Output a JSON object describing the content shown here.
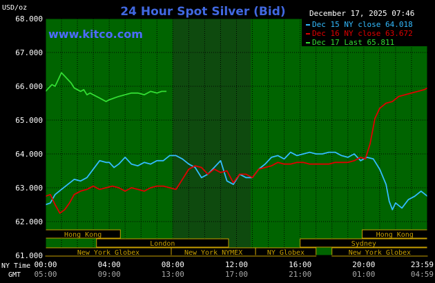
{
  "chart_data": {
    "type": "line",
    "title": "24 Hour Spot Silver (Bid)",
    "site": "www.kitco.com",
    "date_stamp": "December 17, 2025 07:46",
    "unit_label": "USD/oz",
    "ylim": [
      61.0,
      68.0
    ],
    "y_ticks": [
      "68.000",
      "67.000",
      "66.000",
      "65.000",
      "64.000",
      "63.000",
      "62.000",
      "61.000"
    ],
    "xlim": [
      0,
      24
    ],
    "x_ticks_ny": [
      "00:00",
      "04:00",
      "08:00",
      "12:00",
      "16:00",
      "20:00",
      "23:59"
    ],
    "x_ticks_gmt": [
      "05:00",
      "09:00",
      "13:00",
      "17:00",
      "21:00",
      "01:00",
      "04:59"
    ],
    "ny_time_label": "NY Time",
    "gmt_label": "GMT",
    "grid": true,
    "legend_position": "top-right",
    "shaded_session": [
      8.0,
      12.9
    ],
    "colors": {
      "background": "#000000",
      "plot": "#006400",
      "grid": "#000000",
      "title": "#4169E1",
      "site": "#4D6BFF",
      "band_fill": "#000000",
      "band_border": "#C8A000",
      "axis_text": "#FFFFFF"
    },
    "sessions": [
      {
        "label": "Hong Kong",
        "start": 0.0,
        "end": 4.7,
        "row": 0
      },
      {
        "label": "Hong Kong",
        "start": 19.9,
        "end": 24.0,
        "row": 0
      },
      {
        "label": "London",
        "start": 3.2,
        "end": 11.5,
        "row": 1
      },
      {
        "label": "Sydney",
        "start": 16.0,
        "end": 24.0,
        "row": 1
      },
      {
        "label": "New York Globex",
        "start": 0.0,
        "end": 7.9,
        "row": 2
      },
      {
        "label": "New York NYMEX",
        "start": 7.9,
        "end": 13.2,
        "row": 2
      },
      {
        "label": "NY Globex",
        "start": 13.2,
        "end": 17.0,
        "row": 2
      },
      {
        "label": "New York Globex",
        "start": 18.0,
        "end": 24.0,
        "row": 2
      }
    ],
    "series": [
      {
        "name": "Dec 15 NY close 64.018",
        "color": "#33BBFF",
        "x": [
          0,
          0.3,
          0.6,
          1.0,
          1.4,
          1.8,
          2.2,
          2.6,
          3.0,
          3.4,
          3.8,
          4.0,
          4.3,
          4.6,
          5.0,
          5.4,
          5.8,
          6.2,
          6.6,
          7.0,
          7.4,
          7.8,
          8.2,
          8.6,
          9.0,
          9.4,
          9.8,
          10.2,
          10.6,
          11.0,
          11.4,
          11.8,
          12.2,
          12.6,
          13.0,
          13.4,
          13.8,
          14.2,
          14.6,
          15.0,
          15.4,
          15.8,
          16.2,
          16.6,
          17.0,
          17.4,
          17.8,
          18.2,
          18.6,
          19.0,
          19.4,
          19.8,
          20.2,
          20.6,
          21.0,
          21.4,
          21.6,
          21.8,
          22.0,
          22.4,
          22.8,
          23.2,
          23.6,
          24.0
        ],
        "y": [
          62.5,
          62.55,
          62.8,
          62.95,
          63.1,
          63.25,
          63.2,
          63.3,
          63.55,
          63.8,
          63.75,
          63.75,
          63.6,
          63.7,
          63.9,
          63.7,
          63.65,
          63.75,
          63.7,
          63.8,
          63.8,
          63.95,
          63.95,
          63.85,
          63.7,
          63.6,
          63.3,
          63.4,
          63.6,
          63.8,
          63.2,
          63.1,
          63.4,
          63.3,
          63.3,
          63.55,
          63.7,
          63.9,
          63.95,
          63.85,
          64.05,
          63.95,
          64.0,
          64.05,
          64.0,
          64.0,
          64.05,
          64.05,
          63.95,
          63.9,
          64.0,
          63.8,
          63.9,
          63.85,
          63.55,
          63.1,
          62.6,
          62.35,
          62.55,
          62.4,
          62.65,
          62.75,
          62.9,
          62.75
        ]
      },
      {
        "name": "Dec 16 NY close 63.672",
        "color": "#E00000",
        "x": [
          0,
          0.3,
          0.6,
          0.9,
          1.2,
          1.5,
          1.8,
          2.2,
          2.6,
          3.0,
          3.4,
          3.8,
          4.2,
          4.6,
          5.0,
          5.4,
          5.8,
          6.2,
          6.6,
          7.0,
          7.4,
          7.8,
          8.2,
          8.6,
          9.0,
          9.4,
          9.8,
          10.2,
          10.6,
          11.0,
          11.4,
          11.8,
          12.2,
          12.6,
          13.0,
          13.4,
          13.8,
          14.2,
          14.6,
          15.0,
          15.4,
          15.8,
          16.2,
          16.6,
          17.0,
          17.4,
          17.8,
          18.2,
          18.6,
          19.0,
          19.4,
          19.8,
          20.1,
          20.4,
          20.7,
          21.0,
          21.4,
          21.8,
          22.2,
          22.6,
          23.0,
          23.4,
          23.8,
          24.0
        ],
        "y": [
          62.75,
          62.8,
          62.5,
          62.25,
          62.35,
          62.55,
          62.8,
          62.9,
          62.95,
          63.05,
          62.95,
          63.0,
          63.05,
          63.0,
          62.9,
          63.0,
          62.95,
          62.9,
          63.0,
          63.05,
          63.05,
          63.0,
          62.95,
          63.25,
          63.55,
          63.65,
          63.6,
          63.4,
          63.55,
          63.45,
          63.5,
          63.15,
          63.4,
          63.4,
          63.3,
          63.55,
          63.6,
          63.65,
          63.75,
          63.7,
          63.7,
          63.75,
          63.75,
          63.7,
          63.7,
          63.7,
          63.7,
          63.75,
          63.75,
          63.75,
          63.8,
          63.9,
          63.85,
          64.3,
          65.05,
          65.35,
          65.5,
          65.55,
          65.7,
          65.75,
          65.8,
          65.85,
          65.9,
          65.95
        ]
      },
      {
        "name": "Dec 17 Last 65.811",
        "color": "#33DD33",
        "x": [
          0,
          0.2,
          0.4,
          0.6,
          0.8,
          1.0,
          1.2,
          1.4,
          1.6,
          1.8,
          2.0,
          2.2,
          2.4,
          2.6,
          2.8,
          3.0,
          3.2,
          3.4,
          3.6,
          3.8,
          4.0,
          4.3,
          4.6,
          5.0,
          5.4,
          5.8,
          6.2,
          6.6,
          7.0,
          7.3,
          7.6
        ],
        "y": [
          65.85,
          65.95,
          66.05,
          66.0,
          66.2,
          66.4,
          66.3,
          66.2,
          66.1,
          65.95,
          65.9,
          65.85,
          65.9,
          65.75,
          65.8,
          65.75,
          65.7,
          65.65,
          65.6,
          65.55,
          65.6,
          65.65,
          65.7,
          65.75,
          65.8,
          65.8,
          65.75,
          65.85,
          65.8,
          65.85,
          65.85
        ]
      }
    ]
  }
}
